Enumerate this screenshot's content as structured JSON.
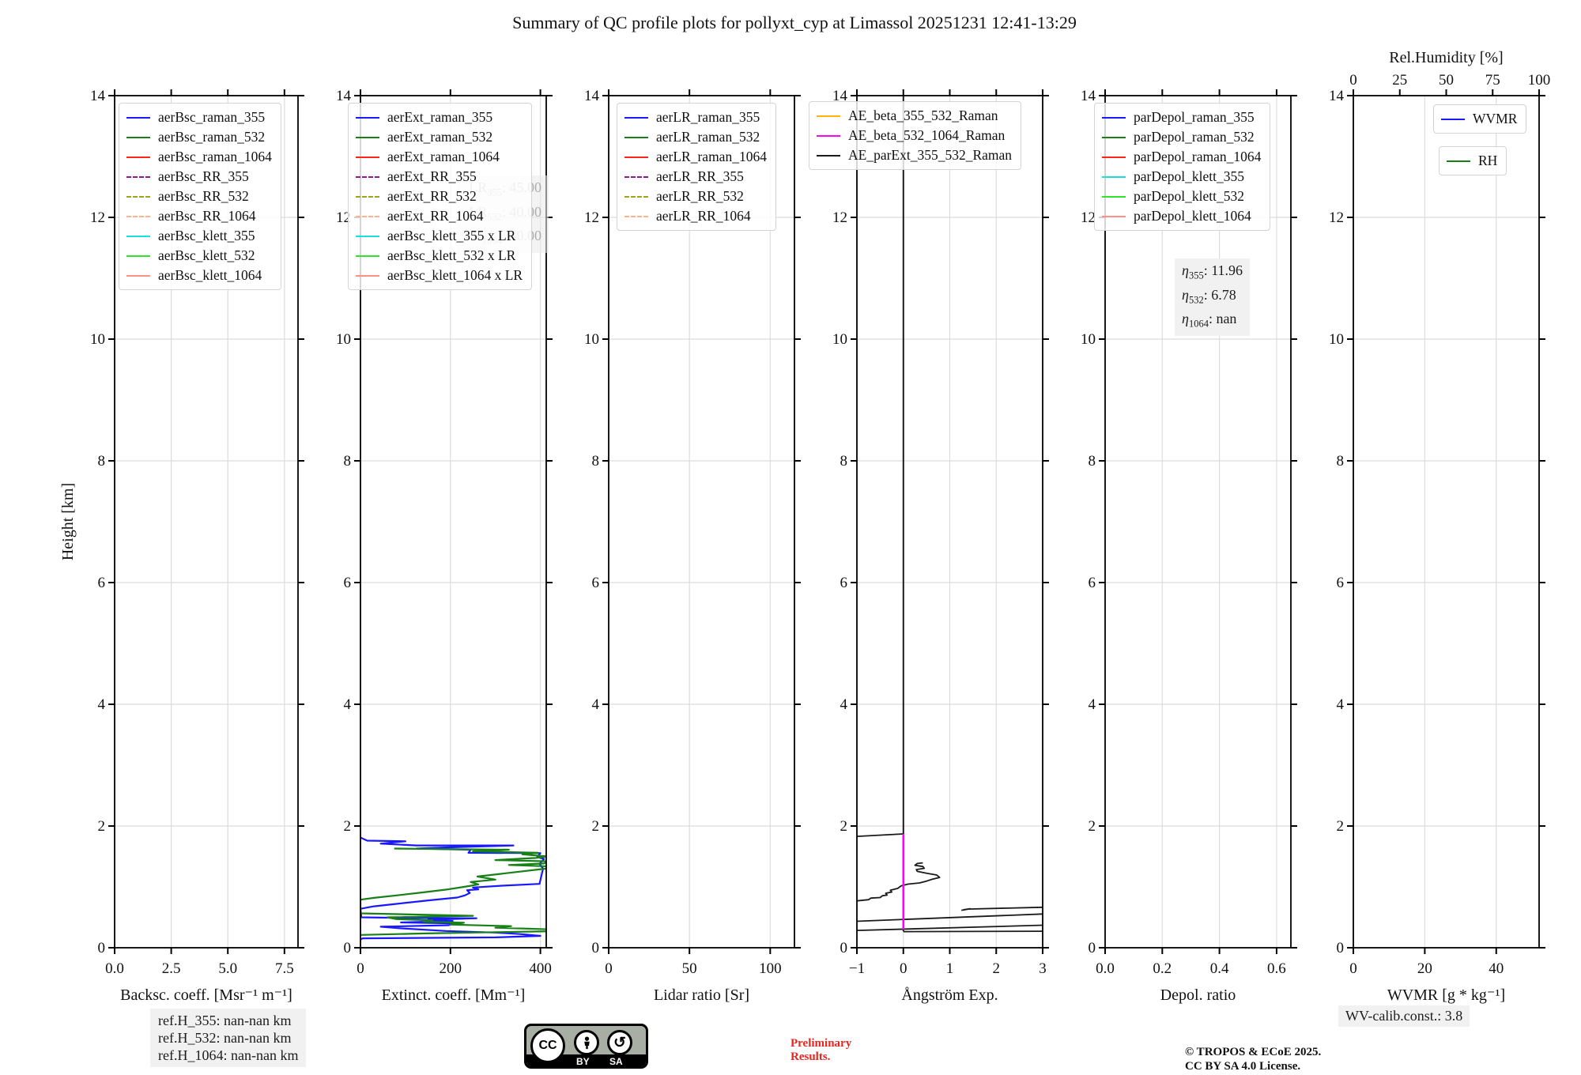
{
  "title": "Summary of QC profile plots for pollyxt_cyp at Limassol 20251231 12:41-13:29",
  "ylabel": "Height [km]",
  "ylim": [
    0,
    14
  ],
  "yticks": [
    0,
    2,
    4,
    6,
    8,
    10,
    12,
    14
  ],
  "ytick_labels": [
    "0",
    "2",
    "4",
    "6",
    "8",
    "10",
    "12",
    "14"
  ],
  "colors": {
    "blue": "#1919ff",
    "green": "#178017",
    "red": "#ff2619",
    "purple": "#8b1a8b",
    "darkyellow": "#a3a31b",
    "lightsalmon": "#ffb28c",
    "cyan": "#19dede",
    "brightgreen": "#2ee52e",
    "salmon": "#ff9184",
    "orange": "#ffb400",
    "magenta": "#ff00ff",
    "black": "#1a1a1a"
  },
  "chart_data": [
    {
      "name": "backscatter",
      "type": "line",
      "xlabel": "Backsc. coeff. [Msr⁻¹ m⁻¹]",
      "xlim": [
        0,
        8.1
      ],
      "xticks": [
        0,
        2.5,
        5,
        7.5
      ],
      "xtick_labels": [
        "0.0",
        "2.5",
        "5.0",
        "7.5"
      ],
      "legend": [
        {
          "label": "aerBsc_raman_355",
          "color": "blue",
          "dash": false
        },
        {
          "label": "aerBsc_raman_532",
          "color": "green",
          "dash": false
        },
        {
          "label": "aerBsc_raman_1064",
          "color": "red",
          "dash": false
        },
        {
          "label": "aerBsc_RR_355",
          "color": "purple",
          "dash": true
        },
        {
          "label": "aerBsc_RR_532",
          "color": "darkyellow",
          "dash": true
        },
        {
          "label": "aerBsc_RR_1064",
          "color": "lightsalmon",
          "dash": true
        },
        {
          "label": "aerBsc_klett_355",
          "color": "cyan",
          "dash": false
        },
        {
          "label": "aerBsc_klett_532",
          "color": "brightgreen",
          "dash": false
        },
        {
          "label": "aerBsc_klett_1064",
          "color": "salmon",
          "dash": false
        }
      ],
      "series": []
    },
    {
      "name": "extinction",
      "type": "line",
      "xlabel": "Extinct. coeff. [Mm⁻¹]",
      "xlim": [
        0,
        413
      ],
      "xticks": [
        0,
        200,
        400
      ],
      "xtick_labels": [
        "0",
        "200",
        "400"
      ],
      "legend": [
        {
          "label": "aerExt_raman_355",
          "color": "blue",
          "dash": false
        },
        {
          "label": "aerExt_raman_532",
          "color": "green",
          "dash": false
        },
        {
          "label": "aerExt_raman_1064",
          "color": "red",
          "dash": false
        },
        {
          "label": "aerExt_RR_355",
          "color": "purple",
          "dash": true
        },
        {
          "label": "aerExt_RR_532",
          "color": "darkyellow",
          "dash": true
        },
        {
          "label": "aerExt_RR_1064",
          "color": "lightsalmon",
          "dash": true
        },
        {
          "label": "aerBsc_klett_355 x LR",
          "color": "cyan",
          "dash": false
        },
        {
          "label": "aerBsc_klett_532 x LR",
          "color": "brightgreen",
          "dash": false
        },
        {
          "label": "aerBsc_klett_1064 x LR",
          "color": "salmon",
          "dash": false
        }
      ],
      "annotation_lr": [
        {
          "p": "LR",
          "s": "355",
          "v": "45.00"
        },
        {
          "p": "LR",
          "s": "532",
          "v": "40.00"
        },
        {
          "p": "LR",
          "s": "1064",
          "v": "50.00"
        }
      ],
      "series": [
        {
          "name": "aerExt_raman_355",
          "color": "blue",
          "width": 2.2,
          "points": [
            [
              0,
              1.81
            ],
            [
              15,
              1.76
            ],
            [
              100,
              1.75
            ],
            [
              45,
              1.71
            ],
            [
              125,
              1.68
            ],
            [
              340,
              1.68
            ],
            [
              195,
              1.65
            ],
            [
              125,
              1.63
            ],
            [
              245,
              1.61
            ],
            [
              240,
              1.56
            ],
            [
              400,
              1.555
            ],
            [
              393,
              1.49
            ],
            [
              408,
              1.46
            ],
            [
              398,
              1.38
            ],
            [
              406,
              1.3
            ],
            [
              398,
              1.05
            ],
            [
              315,
              1.02
            ],
            [
              250,
              0.99
            ],
            [
              262,
              0.96
            ],
            [
              237,
              0.945
            ],
            [
              243,
              0.9
            ],
            [
              232,
              0.86
            ],
            [
              215,
              0.825
            ],
            [
              155,
              0.78
            ],
            [
              78,
              0.72
            ],
            [
              30,
              0.68
            ],
            [
              0,
              0.64
            ],
            [
              2,
              0.5
            ],
            [
              98,
              0.49
            ],
            [
              258,
              0.485
            ],
            [
              150,
              0.46
            ],
            [
              205,
              0.44
            ],
            [
              90,
              0.415
            ],
            [
              208,
              0.4
            ],
            [
              196,
              0.37
            ],
            [
              45,
              0.345
            ],
            [
              88,
              0.32
            ],
            [
              190,
              0.275
            ],
            [
              300,
              0.25
            ],
            [
              355,
              0.225
            ],
            [
              400,
              0.195
            ],
            [
              300,
              0.17
            ],
            [
              5,
              0.155
            ],
            [
              0,
              0.135
            ]
          ]
        },
        {
          "name": "aerExt_raman_532",
          "color": "green",
          "width": 2.2,
          "points": [
            [
              75,
              1.63
            ],
            [
              330,
              1.61
            ],
            [
              250,
              1.585
            ],
            [
              395,
              1.56
            ],
            [
              360,
              1.535
            ],
            [
              415,
              1.5
            ],
            [
              390,
              1.475
            ],
            [
              300,
              1.44
            ],
            [
              420,
              1.42
            ],
            [
              408,
              1.385
            ],
            [
              330,
              1.36
            ],
            [
              425,
              1.335
            ],
            [
              413,
              1.3
            ],
            [
              260,
              1.17
            ],
            [
              300,
              1.12
            ],
            [
              245,
              1.08
            ],
            [
              262,
              1.04
            ],
            [
              230,
              1.0
            ],
            [
              195,
              0.96
            ],
            [
              140,
              0.91
            ],
            [
              80,
              0.86
            ],
            [
              30,
              0.82
            ],
            [
              0,
              0.79
            ],
            [
              0,
              0.565
            ],
            [
              250,
              0.525
            ],
            [
              60,
              0.5
            ],
            [
              80,
              0.47
            ],
            [
              160,
              0.45
            ],
            [
              140,
              0.43
            ],
            [
              230,
              0.41
            ],
            [
              200,
              0.38
            ],
            [
              335,
              0.355
            ],
            [
              300,
              0.33
            ],
            [
              432,
              0.3
            ],
            [
              420,
              0.27
            ],
            [
              250,
              0.25
            ],
            [
              145,
              0.235
            ],
            [
              0,
              0.21
            ]
          ]
        }
      ]
    },
    {
      "name": "lidar_ratio",
      "type": "line",
      "xlabel": "Lidar ratio [Sr]",
      "xlim": [
        0,
        115
      ],
      "xticks": [
        0,
        50,
        100
      ],
      "xtick_labels": [
        "0",
        "50",
        "100"
      ],
      "legend": [
        {
          "label": "aerLR_raman_355",
          "color": "blue",
          "dash": false
        },
        {
          "label": "aerLR_raman_532",
          "color": "green",
          "dash": false
        },
        {
          "label": "aerLR_raman_1064",
          "color": "red",
          "dash": false
        },
        {
          "label": "aerLR_RR_355",
          "color": "purple",
          "dash": true
        },
        {
          "label": "aerLR_RR_532",
          "color": "darkyellow",
          "dash": true
        },
        {
          "label": "aerLR_RR_1064",
          "color": "lightsalmon",
          "dash": true
        }
      ],
      "series": []
    },
    {
      "name": "angstrom",
      "type": "line",
      "xlabel": "Ångström Exp.",
      "xlim": [
        -1,
        3
      ],
      "xticks": [
        -1,
        0,
        1,
        2,
        3
      ],
      "xtick_labels": [
        "−1",
        "0",
        "1",
        "2",
        "3"
      ],
      "legend": [
        {
          "label": "AE_beta_355_532_Raman",
          "color": "orange",
          "dash": false
        },
        {
          "label": "AE_beta_532_1064_Raman",
          "color": "magenta",
          "dash": false
        },
        {
          "label": "AE_parExt_355_532_Raman",
          "color": "black",
          "dash": false
        }
      ],
      "series": [
        {
          "name": "AE_parExt_355_532_Raman_top",
          "color": "black",
          "width": 1.8,
          "points": [
            [
              -1,
              1.83
            ],
            [
              0,
              1.87
            ]
          ]
        },
        {
          "name": "AE_parExt_355_532_Raman_wiggle",
          "color": "black",
          "width": 1.8,
          "points": [
            [
              -1,
              0.77
            ],
            [
              -0.75,
              0.79
            ],
            [
              -0.7,
              0.815
            ],
            [
              -0.5,
              0.825
            ],
            [
              -0.45,
              0.855
            ],
            [
              -0.35,
              0.865
            ],
            [
              -0.38,
              0.895
            ],
            [
              -0.25,
              0.915
            ],
            [
              -0.28,
              0.945
            ],
            [
              -0.12,
              0.975
            ],
            [
              -0.05,
              1.015
            ],
            [
              0.1,
              1.045
            ],
            [
              0.35,
              1.065
            ],
            [
              0.5,
              1.095
            ],
            [
              0.62,
              1.125
            ],
            [
              0.78,
              1.155
            ],
            [
              0.72,
              1.195
            ],
            [
              0.5,
              1.225
            ],
            [
              0.3,
              1.255
            ],
            [
              0.28,
              1.285
            ],
            [
              0.45,
              1.305
            ],
            [
              0.42,
              1.335
            ],
            [
              0.25,
              1.355
            ],
            [
              0.3,
              1.385
            ],
            [
              0.42,
              1.395
            ]
          ]
        },
        {
          "name": "AE_parExt_355_532_Raman_seg1",
          "color": "black",
          "width": 1.8,
          "points": [
            [
              1.25,
              0.615
            ],
            [
              1.44,
              0.64
            ],
            [
              1.3,
              0.625
            ],
            [
              1.38,
              0.635
            ],
            [
              3,
              0.665
            ]
          ]
        },
        {
          "name": "AE_parExt_355_532_Raman_seg2",
          "color": "black",
          "width": 1.8,
          "points": [
            [
              -1,
              0.435
            ],
            [
              3,
              0.555
            ]
          ]
        },
        {
          "name": "AE_parExt_355_532_Raman_seg3",
          "color": "black",
          "width": 1.8,
          "points": [
            [
              -1,
              0.285
            ],
            [
              3,
              0.37
            ]
          ]
        },
        {
          "name": "AE_parExt_355_532_Raman_seg4",
          "color": "black",
          "width": 1.8,
          "points": [
            [
              0,
              0.265
            ],
            [
              3,
              0.272
            ]
          ]
        },
        {
          "name": "AE_parExt_355_532_Raman_vline",
          "color": "black",
          "width": 2,
          "points": [
            [
              0,
              0.27
            ],
            [
              0,
              14
            ]
          ]
        },
        {
          "name": "AE_beta_532_1064_Raman",
          "color": "magenta",
          "width": 2.6,
          "points": [
            [
              0,
              0.3
            ],
            [
              0,
              1.87
            ]
          ]
        }
      ]
    },
    {
      "name": "depol_ratio",
      "type": "line",
      "xlabel": "Depol. ratio",
      "xlim": [
        0,
        0.65
      ],
      "xticks": [
        0,
        0.2,
        0.4,
        0.6
      ],
      "xtick_labels": [
        "0.0",
        "0.2",
        "0.4",
        "0.6"
      ],
      "legend": [
        {
          "label": "parDepol_raman_355",
          "color": "blue",
          "dash": false
        },
        {
          "label": "parDepol_raman_532",
          "color": "green",
          "dash": false
        },
        {
          "label": "parDepol_raman_1064",
          "color": "red",
          "dash": false
        },
        {
          "label": "parDepol_klett_355",
          "color": "cyan",
          "dash": false
        },
        {
          "label": "parDepol_klett_532",
          "color": "brightgreen",
          "dash": false
        },
        {
          "label": "parDepol_klett_1064",
          "color": "salmon",
          "dash": false
        }
      ],
      "annotation_eta": [
        {
          "p": "η",
          "s": "355",
          "v": "11.96"
        },
        {
          "p": "η",
          "s": "532",
          "v": "6.78"
        },
        {
          "p": "η",
          "s": "1064",
          "v": "nan"
        }
      ],
      "series": []
    },
    {
      "name": "wvmr",
      "type": "line",
      "xlabel": "WVMR [g * kg⁻¹]",
      "xlim": [
        0,
        52
      ],
      "xticks": [
        0,
        20,
        40
      ],
      "xtick_labels": [
        "0",
        "20",
        "40"
      ],
      "top_axis": {
        "label": "Rel.Humidity [%]",
        "lim": [
          0,
          100
        ],
        "ticks": [
          0,
          25,
          50,
          75,
          100
        ],
        "tick_labels": [
          "0",
          "25",
          "50",
          "75",
          "100"
        ]
      },
      "legend_boxes": [
        {
          "items": [
            {
              "label": "WVMR",
              "color": "blue",
              "dash": false
            }
          ]
        },
        {
          "items": [
            {
              "label": "RH",
              "color": "green",
              "dash": false
            }
          ]
        }
      ],
      "series": []
    }
  ],
  "footer": {
    "ref_lines": [
      "ref.H_355: nan-nan km",
      "ref.H_532: nan-nan km",
      "ref.H_1064: nan-nan km"
    ],
    "license_badge": {
      "cc": "CC",
      "by": "BY",
      "sa": "SA"
    },
    "preliminary": [
      "Preliminary",
      "Results."
    ],
    "copyright": [
      "© TROPOS & ECoE 2025.",
      "CC BY SA 4.0 License."
    ],
    "wv_calib": "WV-calib.const.: 3.8"
  }
}
